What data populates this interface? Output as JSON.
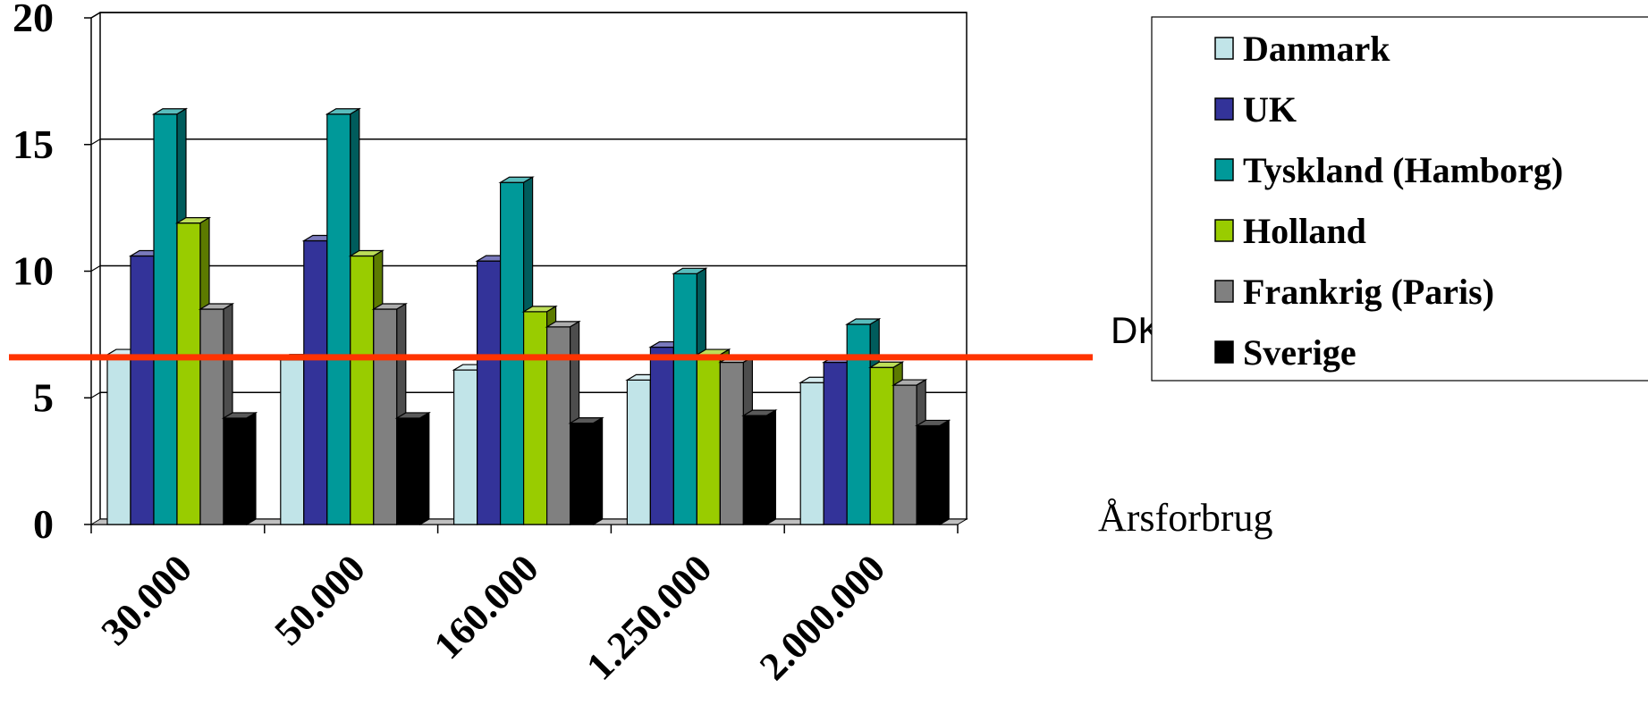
{
  "chart_data": {
    "type": "bar",
    "categories": [
      "30.000",
      "50.000",
      "160.000",
      "1.250.000",
      "2.000.000"
    ],
    "series": [
      {
        "name": "Danmark",
        "values": [
          6.7,
          6.5,
          6.1,
          5.7,
          5.6
        ],
        "color": "#c1e4e8"
      },
      {
        "name": "UK",
        "values": [
          10.6,
          11.2,
          10.4,
          7.0,
          6.4
        ],
        "color": "#333399"
      },
      {
        "name": "Tyskland (Hamborg)",
        "values": [
          16.2,
          16.2,
          13.5,
          9.9,
          7.9
        ],
        "color": "#009999"
      },
      {
        "name": "Holland",
        "values": [
          11.9,
          10.6,
          8.4,
          6.7,
          6.2
        ],
        "color": "#99cc00"
      },
      {
        "name": "Frankrig (Paris)",
        "values": [
          8.5,
          8.5,
          7.8,
          6.4,
          5.5
        ],
        "color": "#808080"
      },
      {
        "name": "Sverige",
        "values": [
          4.2,
          4.2,
          4.0,
          4.3,
          3.9
        ],
        "color": "#000000"
      }
    ],
    "xlabel": "Årsforbrug",
    "ylabel": "",
    "ylim": [
      0,
      20
    ],
    "yticks": [
      "0",
      "5",
      "10",
      "15",
      "20"
    ],
    "grid": true,
    "legend_position": "right",
    "reference_line": {
      "label": "DK",
      "value": 6.6,
      "color": "#ff3300"
    }
  }
}
